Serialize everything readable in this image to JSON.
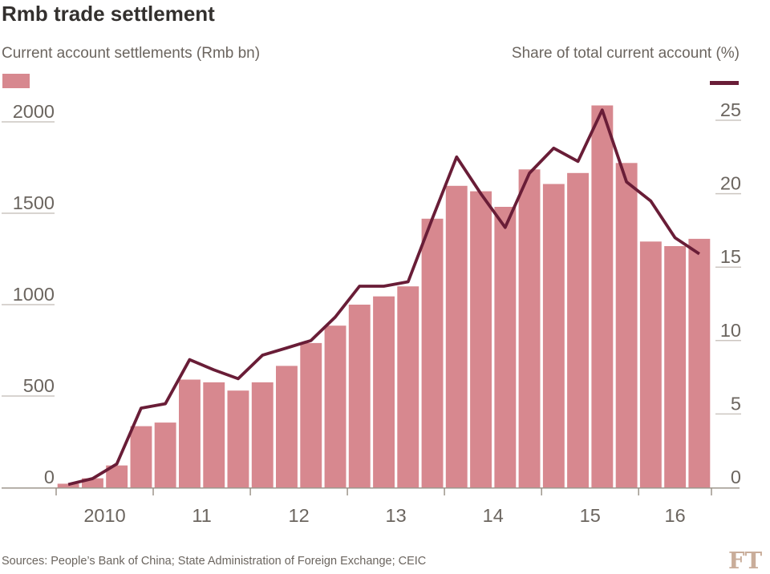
{
  "title": "Rmb trade settlement",
  "legend": {
    "left_label": "Current account settlements (Rmb bn)",
    "right_label": "Share of total current account (%)"
  },
  "source": "Sources: People’s Bank of China; State Administration of Foreign Exchange; CEIC",
  "logo": "FT",
  "colors": {
    "bar": "#d7888f",
    "line": "#691d37",
    "axis": "#9d968c",
    "tick_underline": "#ccc6c0",
    "label_text": "#6b655f",
    "title_text": "#33302e",
    "logo": "#c9ad9a",
    "background": "#ffffff"
  },
  "chart_data": {
    "type": "bar",
    "title": "Rmb trade settlement",
    "categories": [
      "2010 Q1",
      "2010 Q2",
      "2010 Q3",
      "2010 Q4",
      "2011 Q1",
      "2011 Q2",
      "2011 Q3",
      "2011 Q4",
      "2012 Q1",
      "2012 Q2",
      "2012 Q3",
      "2012 Q4",
      "2013 Q1",
      "2013 Q2",
      "2013 Q3",
      "2013 Q4",
      "2014 Q1",
      "2014 Q2",
      "2014 Q3",
      "2014 Q4",
      "2015 Q1",
      "2015 Q2",
      "2015 Q3",
      "2015 Q4",
      "2016 Q1",
      "2016 Q2",
      "2016 Q3"
    ],
    "series": [
      {
        "name": "Current account settlements (Rmb bn)",
        "type": "bar",
        "axis": "left",
        "values": [
          20,
          50,
          120,
          335,
          355,
          590,
          575,
          530,
          575,
          665,
          790,
          885,
          1000,
          1045,
          1100,
          1470,
          1650,
          1620,
          1535,
          1740,
          1660,
          1720,
          2090,
          1775,
          1345,
          1320,
          1360
        ]
      },
      {
        "name": "Share of total current account (%)",
        "type": "line",
        "axis": "right",
        "values": [
          0.2,
          0.6,
          1.6,
          5.4,
          5.7,
          8.7,
          8.0,
          7.4,
          9.0,
          9.5,
          10.0,
          11.6,
          13.7,
          13.7,
          14.0,
          18.3,
          22.5,
          20.0,
          17.7,
          21.4,
          23.1,
          22.2,
          25.7,
          20.8,
          19.5,
          17.0,
          15.9
        ]
      }
    ],
    "left_axis": {
      "label": "Current account settlements (Rmb bn)",
      "ticks": [
        0,
        500,
        1000,
        1500,
        2000
      ],
      "range": [
        0,
        2200
      ]
    },
    "right_axis": {
      "label": "Share of total current account (%)",
      "ticks": [
        0,
        5,
        10,
        15,
        20,
        25
      ],
      "range": [
        0,
        27.5
      ]
    },
    "x_axis": {
      "labels": [
        "2010",
        "11",
        "12",
        "13",
        "14",
        "15",
        "16"
      ],
      "tick_quarter_indices": [
        0,
        4,
        8,
        12,
        16,
        20,
        24,
        27
      ]
    },
    "grid": false,
    "legend_position": "top"
  }
}
